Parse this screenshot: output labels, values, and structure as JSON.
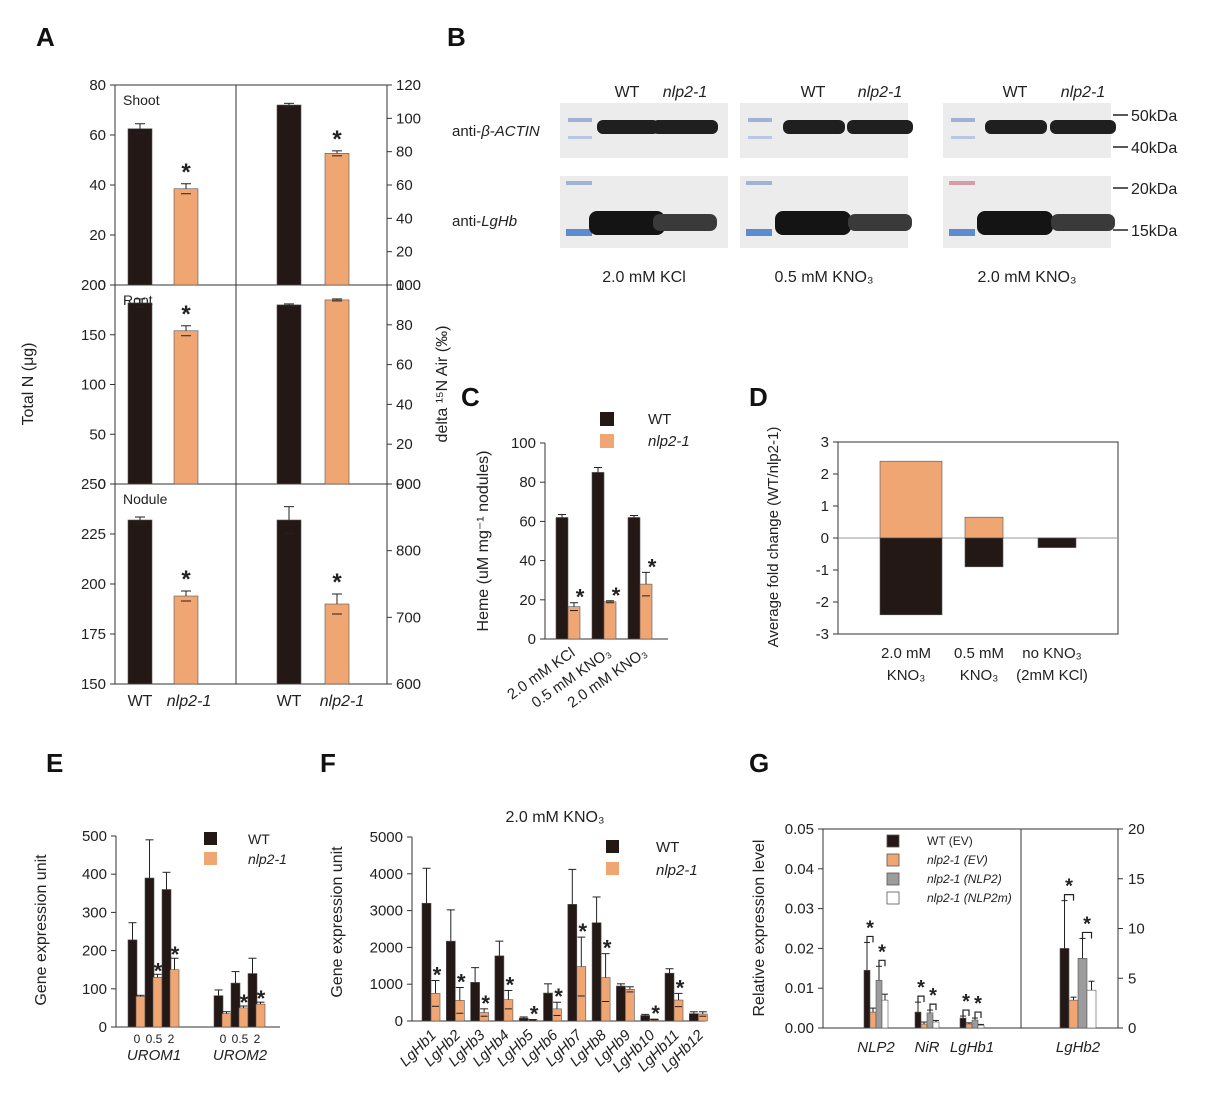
{
  "panel_letters": [
    "A",
    "B",
    "C",
    "D",
    "E",
    "F",
    "G"
  ],
  "colors": {
    "wt": "#231815",
    "nlp": "#f0a673",
    "gray": "#9c9c9c",
    "white": "#ffffff",
    "axis": "#333333"
  },
  "panelA": {
    "ylabel_left": "Total N (μg)",
    "ylabel_right": "delta ¹⁵N Air (‰)",
    "categories": [
      "WT",
      "nlp2-1"
    ],
    "rows": [
      {
        "name": "Shoot",
        "left": {
          "ylim": [
            0,
            80
          ],
          "ticks": [
            "0",
            "20",
            "40",
            "60",
            "80"
          ],
          "values": [
            62.5,
            38.5
          ],
          "errors": [
            2,
            2
          ],
          "sig": [
            false,
            true
          ]
        },
        "right": {
          "ylim": [
            0,
            120
          ],
          "ticks": [
            "0",
            "20",
            "40",
            "60",
            "80",
            "100",
            "120"
          ],
          "values": [
            108,
            79
          ],
          "errors": [
            1,
            1.5
          ],
          "sig": [
            false,
            true
          ]
        }
      },
      {
        "name": "Root",
        "left": {
          "ylim": [
            0,
            200
          ],
          "ticks": [
            "0",
            "50",
            "100",
            "150",
            "200"
          ],
          "values": [
            182,
            154
          ],
          "errors": [
            4,
            5
          ],
          "sig": [
            false,
            true
          ]
        },
        "right": {
          "ylim": [
            0,
            100
          ],
          "ticks": [
            "0",
            "20",
            "40",
            "60",
            "80",
            "100"
          ],
          "values": [
            90,
            92.5
          ],
          "errors": [
            0.5,
            0.5
          ],
          "sig": [
            false,
            false
          ]
        }
      },
      {
        "name": "Nodule",
        "left": {
          "ylim": [
            150,
            250
          ],
          "ticks": [
            "150",
            "175",
            "200",
            "225",
            "250"
          ],
          "values": [
            232,
            194
          ],
          "errors": [
            1.5,
            2.5
          ],
          "sig": [
            false,
            true
          ]
        },
        "right": {
          "ylim": [
            600,
            900
          ],
          "ticks": [
            "600",
            "700",
            "800",
            "900"
          ],
          "values": [
            846,
            720
          ],
          "errors": [
            20,
            15
          ],
          "sig": [
            false,
            true
          ]
        }
      }
    ]
  },
  "panelB": {
    "lane_labels": [
      "WT",
      "nlp2-1"
    ],
    "row_labels": [
      "anti-β-ACTIN",
      "anti-LgHb"
    ],
    "row_prefixes": [
      "anti-",
      "anti-"
    ],
    "row_italics": [
      "β-ACTIN",
      "LgHb"
    ],
    "conditions": [
      "2.0 mM KCl",
      "0.5 mM KNO₃",
      "2.0 mM KNO₃"
    ],
    "markers": [
      "50kDa",
      "40kDa",
      "20kDa",
      "15kDa"
    ]
  },
  "chart_data": [
    {
      "panel": "C",
      "type": "bar",
      "ylabel": "Heme (uM mg⁻¹ nodules)",
      "ylim": [
        0,
        100
      ],
      "categories": [
        "2.0 mM KCl",
        "0.5 mM KNO₃",
        "2.0 mM KNO₃"
      ],
      "series": [
        {
          "name": "WT",
          "values": [
            62,
            85,
            62
          ],
          "errors": [
            1.5,
            2.5,
            1
          ]
        },
        {
          "name": "nlp2-1",
          "values": [
            16.5,
            19,
            28
          ],
          "errors": [
            2,
            0.5,
            6
          ]
        }
      ],
      "significance": [
        true,
        true,
        true
      ]
    },
    {
      "panel": "D",
      "type": "bar",
      "ylabel": "Average fold change (WT/nlp2-1)",
      "ylim": [
        -3,
        3
      ],
      "categories": [
        "2.0 mM KNO₃",
        "0.5 mM KNO₃",
        "no KNO₃ (2mM KCl)"
      ],
      "positive": [
        2.4,
        0.65,
        0
      ],
      "negative": [
        -2.4,
        -0.9,
        -0.3
      ]
    },
    {
      "panel": "E",
      "type": "bar",
      "ylabel": "Gene expression unit",
      "ylim": [
        0,
        500
      ],
      "groups": [
        "UROM1",
        "UROM2"
      ],
      "subcategories": [
        "0",
        "0.5",
        "2"
      ],
      "series": [
        {
          "name": "WT",
          "values": [
            [
              228,
              390,
              360
            ],
            [
              82,
              115,
              140
            ]
          ],
          "errors": [
            [
              45,
              100,
              45
            ],
            [
              15,
              30,
              40
            ]
          ]
        },
        {
          "name": "nlp2-1",
          "values": [
            [
              80,
              130,
              150
            ],
            [
              35,
              50,
              60
            ]
          ],
          "errors": [
            [
              3,
              8,
              30
            ],
            [
              5,
              5,
              5
            ]
          ]
        }
      ],
      "significance": [
        [
          false,
          true,
          true
        ],
        [
          false,
          true,
          true
        ]
      ]
    },
    {
      "panel": "F",
      "type": "bar",
      "title": "2.0 mM KNO₃",
      "ylabel": "Gene expression unit",
      "ylim": [
        0,
        5000
      ],
      "categories": [
        "LgHb1",
        "LgHb2",
        "LgHb3",
        "LgHb4",
        "LgHb5",
        "LgHb6",
        "LgHb7",
        "LgHb8",
        "LgHb9",
        "LgHb10",
        "LgHb11",
        "LgHb12"
      ],
      "series": [
        {
          "name": "WT",
          "values": [
            3200,
            2170,
            1050,
            1770,
            80,
            760,
            3170,
            2670,
            950,
            150,
            1300,
            200
          ],
          "errors": [
            950,
            850,
            400,
            400,
            30,
            250,
            950,
            700,
            60,
            30,
            120,
            50
          ]
        },
        {
          "name": "nlp2-1",
          "values": [
            750,
            560,
            230,
            580,
            30,
            330,
            1480,
            1180,
            860,
            40,
            570,
            190
          ],
          "errors": [
            350,
            350,
            100,
            250,
            10,
            180,
            800,
            650,
            70,
            10,
            180,
            60
          ]
        }
      ],
      "significance": [
        true,
        true,
        true,
        true,
        true,
        true,
        true,
        true,
        false,
        true,
        true,
        false
      ]
    },
    {
      "panel": "G",
      "type": "bar",
      "ylabel": "Relative expression level",
      "ylim_left": [
        0,
        0.05
      ],
      "ylim_right": [
        0,
        20
      ],
      "categories": [
        "NLP2",
        "NiR",
        "LgHb1",
        "LgHb2"
      ],
      "series": [
        {
          "name": "WT (EV)",
          "values": [
            0.0145,
            0.004,
            0.0025,
            8
          ]
        },
        {
          "name": "nlp2-1 (EV)",
          "values": [
            0.004,
            0.001,
            0.001,
            2.8
          ]
        },
        {
          "name": "nlp2-1 (NLP2)",
          "values": [
            0.012,
            0.0038,
            0.002,
            7
          ]
        },
        {
          "name": "nlp2-1 (NLP2m)",
          "values": [
            0.007,
            0.0015,
            0.0007,
            3.8
          ]
        }
      ],
      "errors": [
        [
          0.007,
          0.0025,
          0.0005,
          4.8
        ],
        [
          0.001,
          0.0005,
          0.0003,
          0.3
        ],
        [
          0.0035,
          0.0007,
          0.0005,
          2
        ],
        [
          0.0015,
          0.0004,
          0.0002,
          0.9
        ]
      ]
    }
  ],
  "panelC_legend": [
    "WT",
    "nlp2-1"
  ],
  "panelE_ticks": {
    "y": [
      "0",
      "100",
      "200",
      "300",
      "400",
      "500"
    ],
    "x": [
      "0",
      "0.5",
      "2",
      "0",
      "0.5",
      "2"
    ]
  },
  "panelF_ticks": [
    "0",
    "1000",
    "2000",
    "3000",
    "4000",
    "5000"
  ],
  "panelG_ticks": {
    "left": [
      "0.00",
      "0.01",
      "0.02",
      "0.03",
      "0.04",
      "0.05"
    ],
    "right": [
      "0",
      "5",
      "10",
      "15",
      "20"
    ]
  },
  "panelD_xlabels": [
    [
      "2.0 mM",
      "KNO₃"
    ],
    [
      "0.5 mM",
      "KNO₃"
    ],
    [
      "no KNO₃",
      "(2mM KCl)"
    ]
  ],
  "panelD_ticks": [
    "-3",
    "-2",
    "-1",
    "0",
    "1",
    "2",
    "3"
  ]
}
